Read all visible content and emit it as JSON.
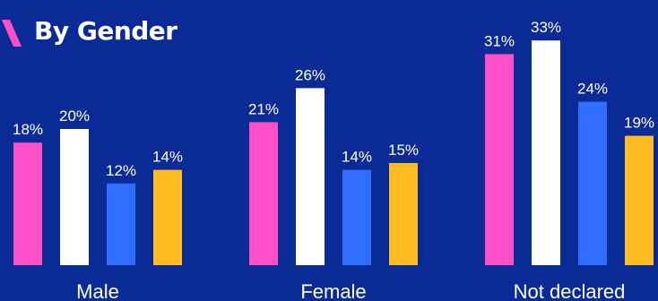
{
  "title": "By Gender",
  "colors": {
    "background": "#0a2a96",
    "accent": "#ff4fc8",
    "text": "#ffffff"
  },
  "chart_data": {
    "type": "bar",
    "title": "By Gender",
    "xlabel": "",
    "ylabel": "",
    "ylim": [
      0,
      34
    ],
    "grid": false,
    "categories": [
      "Male",
      "Female",
      "Not declared"
    ],
    "series": [
      {
        "color": "#ff4fc8",
        "values": [
          18,
          21,
          31
        ],
        "labels": [
          "18%",
          "21%",
          "31%"
        ]
      },
      {
        "color": "#ffffff",
        "values": [
          20,
          26,
          33
        ],
        "labels": [
          "20%",
          "26%",
          "33%"
        ]
      },
      {
        "color": "#2f6dff",
        "values": [
          12,
          14,
          24
        ],
        "labels": [
          "12%",
          "14%",
          "24%"
        ]
      },
      {
        "color": "#ffbb22",
        "values": [
          14,
          15,
          19
        ],
        "labels": [
          "14%",
          "15%",
          "19%"
        ]
      }
    ]
  }
}
